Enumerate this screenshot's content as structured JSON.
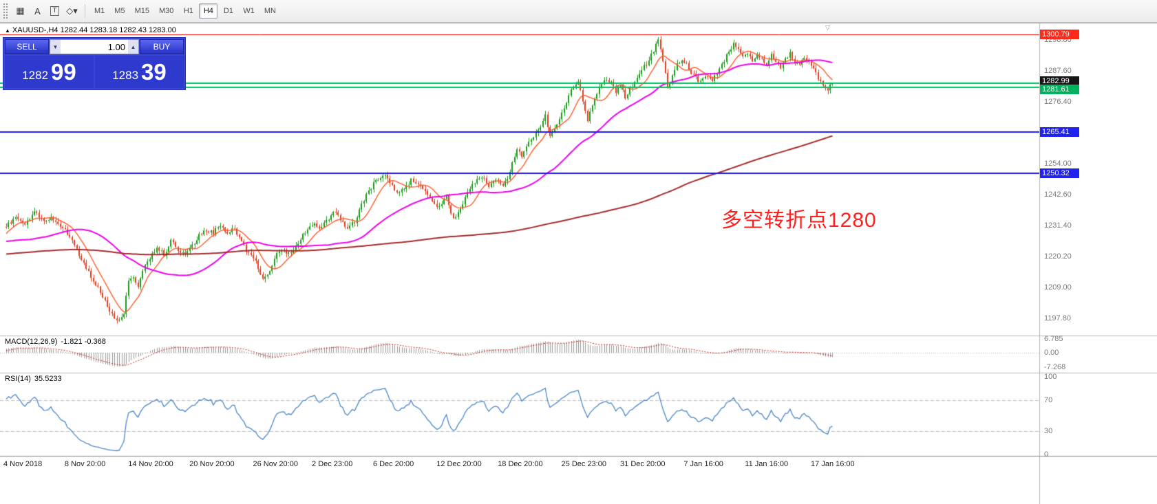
{
  "toolbar": {
    "icons": [
      {
        "name": "grid-icon",
        "glyph": "▦",
        "boxed": false
      },
      {
        "name": "insert-text-a-icon",
        "glyph": "A",
        "boxed": false
      },
      {
        "name": "text-label-icon",
        "glyph": "T",
        "boxed": true
      },
      {
        "name": "shapes-dropdown-icon",
        "glyph": "◇▾",
        "boxed": false
      }
    ],
    "timeframes": [
      "M1",
      "M5",
      "M15",
      "M30",
      "H1",
      "H4",
      "D1",
      "W1",
      "MN"
    ],
    "active_timeframe": "H4"
  },
  "trade_panel": {
    "sell_label": "SELL",
    "buy_label": "BUY",
    "volume": "1.00",
    "sell_price_main": "1282",
    "sell_price_pips": "99",
    "buy_price_main": "1283",
    "buy_price_pips": "39",
    "down_arrow": "▼",
    "up_arrow": "▲"
  },
  "chart_data": {
    "type": "candlestick",
    "symbol": "XAUUSD-",
    "timeframe": "H4",
    "header_arrow": "▲",
    "header_text": "XAUUSD-,H4  1282.44 1283.18 1282.43 1283.00",
    "shift_marker": "▽",
    "annotation": {
      "text": "多空转折点1280",
      "color": "#ff2020"
    },
    "y_ticks": [
      1298.8,
      1287.6,
      1276.4,
      1254.0,
      1242.6,
      1231.4,
      1220.2,
      1209.0,
      1197.8
    ],
    "hlines": [
      {
        "price": 1300.79,
        "label": "1300.79",
        "line_color": "#ff0000",
        "box_color": "#ff2a1a",
        "width": 1,
        "box_dy": 0
      },
      {
        "price": 1282.99,
        "label": "1282.99",
        "line_color": "#00c060",
        "box_color": "#161616",
        "width": 2,
        "box_dy": -3
      },
      {
        "price": 1281.61,
        "label": "1281.61",
        "line_color": "#00c060",
        "box_color": "#00b25c",
        "width": 2,
        "box_dy": 3
      },
      {
        "price": 1265.41,
        "label": "1265.41",
        "line_color": "#1818ee",
        "box_color": "#2222ee",
        "width": 2,
        "box_dy": 0
      },
      {
        "price": 1250.32,
        "label": "1250.32",
        "line_color": "#1818ee",
        "box_color": "#2222ee",
        "width": 2,
        "box_dy": 0
      }
    ],
    "x_labels": [
      {
        "text": "4 Nov 2018",
        "i": 0
      },
      {
        "text": "8 Nov 20:00",
        "i": 26
      },
      {
        "text": "14 Nov 20:00",
        "i": 53
      },
      {
        "text": "20 Nov 20:00",
        "i": 79
      },
      {
        "text": "26 Nov 20:00",
        "i": 106
      },
      {
        "text": "2 Dec 23:00",
        "i": 131
      },
      {
        "text": "6 Dec 20:00",
        "i": 157
      },
      {
        "text": "12 Dec 20:00",
        "i": 184
      },
      {
        "text": "18 Dec 20:00",
        "i": 210
      },
      {
        "text": "25 Dec 23:00",
        "i": 237
      },
      {
        "text": "31 Dec 20:00",
        "i": 262
      },
      {
        "text": "7 Jan 16:00",
        "i": 289
      },
      {
        "text": "11 Jan 16:00",
        "i": 315
      },
      {
        "text": "17 Jan 16:00",
        "i": 343
      }
    ],
    "candle_count": 352,
    "price_path": [
      [
        0,
        1231
      ],
      [
        4,
        1234
      ],
      [
        8,
        1232
      ],
      [
        12,
        1236
      ],
      [
        16,
        1233
      ],
      [
        20,
        1234
      ],
      [
        24,
        1230
      ],
      [
        27,
        1228
      ],
      [
        30,
        1222
      ],
      [
        33,
        1218
      ],
      [
        36,
        1213
      ],
      [
        40,
        1207
      ],
      [
        44,
        1201
      ],
      [
        47,
        1197
      ],
      [
        50,
        1200
      ],
      [
        52,
        1211
      ],
      [
        54,
        1213
      ],
      [
        56,
        1209
      ],
      [
        58,
        1215
      ],
      [
        61,
        1220
      ],
      [
        64,
        1223
      ],
      [
        67,
        1221
      ],
      [
        70,
        1226
      ],
      [
        73,
        1222
      ],
      [
        76,
        1221
      ],
      [
        79,
        1224
      ],
      [
        82,
        1228
      ],
      [
        85,
        1230
      ],
      [
        88,
        1229
      ],
      [
        91,
        1231
      ],
      [
        94,
        1229
      ],
      [
        97,
        1230
      ],
      [
        100,
        1226
      ],
      [
        103,
        1221
      ],
      [
        106,
        1218
      ],
      [
        109,
        1212
      ],
      [
        112,
        1215
      ],
      [
        115,
        1221
      ],
      [
        118,
        1222
      ],
      [
        121,
        1221
      ],
      [
        124,
        1225
      ],
      [
        127,
        1229
      ],
      [
        130,
        1232
      ],
      [
        133,
        1231
      ],
      [
        136,
        1233
      ],
      [
        139,
        1237
      ],
      [
        142,
        1234
      ],
      [
        145,
        1230
      ],
      [
        148,
        1233
      ],
      [
        151,
        1239
      ],
      [
        154,
        1244
      ],
      [
        157,
        1248
      ],
      [
        160,
        1250
      ],
      [
        163,
        1247
      ],
      [
        166,
        1243
      ],
      [
        169,
        1245
      ],
      [
        172,
        1248
      ],
      [
        175,
        1247
      ],
      [
        178,
        1244
      ],
      [
        181,
        1240
      ],
      [
        184,
        1238
      ],
      [
        187,
        1242
      ],
      [
        190,
        1234
      ],
      [
        193,
        1238
      ],
      [
        196,
        1243
      ],
      [
        199,
        1247
      ],
      [
        202,
        1249
      ],
      [
        205,
        1246
      ],
      [
        208,
        1248
      ],
      [
        211,
        1246
      ],
      [
        213,
        1249
      ],
      [
        215,
        1254
      ],
      [
        217,
        1259
      ],
      [
        219,
        1257
      ],
      [
        221,
        1261
      ],
      [
        224,
        1263
      ],
      [
        227,
        1267
      ],
      [
        229,
        1271
      ],
      [
        231,
        1264
      ],
      [
        234,
        1268
      ],
      [
        237,
        1274
      ],
      [
        240,
        1280
      ],
      [
        243,
        1284
      ],
      [
        245,
        1277
      ],
      [
        247,
        1270
      ],
      [
        249,
        1275
      ],
      [
        252,
        1281
      ],
      [
        255,
        1285
      ],
      [
        257,
        1283
      ],
      [
        259,
        1280
      ],
      [
        261,
        1282
      ],
      [
        263,
        1278
      ],
      [
        265,
        1281
      ],
      [
        268,
        1285
      ],
      [
        271,
        1289
      ],
      [
        274,
        1293
      ],
      [
        277,
        1299
      ],
      [
        279,
        1291
      ],
      [
        281,
        1281
      ],
      [
        283,
        1286
      ],
      [
        285,
        1290
      ],
      [
        288,
        1291
      ],
      [
        291,
        1287
      ],
      [
        294,
        1284
      ],
      [
        297,
        1286
      ],
      [
        300,
        1284
      ],
      [
        303,
        1288
      ],
      [
        306,
        1293
      ],
      [
        309,
        1297
      ],
      [
        311,
        1295
      ],
      [
        313,
        1292
      ],
      [
        315,
        1294
      ],
      [
        317,
        1291
      ],
      [
        319,
        1294
      ],
      [
        321,
        1292
      ],
      [
        323,
        1290
      ],
      [
        325,
        1293
      ],
      [
        327,
        1291
      ],
      [
        329,
        1289
      ],
      [
        331,
        1292
      ],
      [
        333,
        1294
      ],
      [
        335,
        1291
      ],
      [
        337,
        1290
      ],
      [
        339,
        1292
      ],
      [
        341,
        1291
      ],
      [
        343,
        1289
      ],
      [
        345,
        1285
      ],
      [
        347,
        1282
      ],
      [
        349,
        1281
      ],
      [
        351,
        1283
      ]
    ],
    "colors": {
      "up": "#169a16",
      "down": "#e23b1e",
      "ma_fast": "#ff5a28",
      "ma_mid": "#ee00ee",
      "ma_slow": "#a42b2b",
      "rsi": "#4a86c8",
      "macd_hist": "#989898",
      "macd_signal": "#d02020"
    },
    "indicators": {
      "macd": {
        "label": "MACD(12,26,9)",
        "value_text": "-1.821 -0.368",
        "scale": [
          "6.785",
          "0.00",
          "-7.268"
        ]
      },
      "rsi": {
        "label": "RSI(14)",
        "value_text": "35.5233",
        "scale": [
          "100",
          "70",
          "30",
          "0"
        ],
        "levels": [
          70,
          30
        ]
      }
    }
  }
}
